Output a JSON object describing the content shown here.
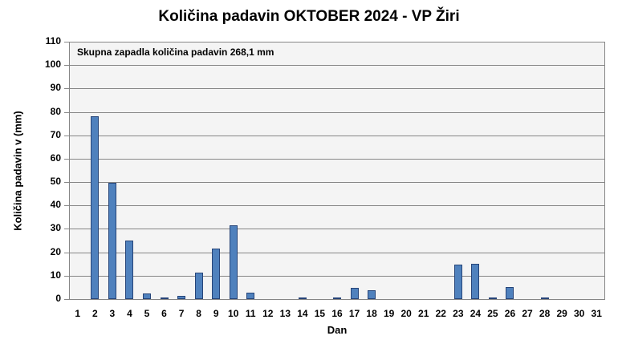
{
  "chart_data": {
    "type": "bar",
    "title": "Količina padavin OKTOBER 2024 - VP Žiri",
    "xlabel": "Dan",
    "ylabel": "Količina padavin v  (mm)",
    "ylim": [
      0,
      110
    ],
    "yticks": [
      0,
      10,
      20,
      30,
      40,
      50,
      60,
      70,
      80,
      90,
      100,
      110
    ],
    "grid": true,
    "legend": null,
    "annotation": "Skupna zapadla količina padavin 268,1 mm",
    "categories": [
      "1",
      "2",
      "3",
      "4",
      "5",
      "6",
      "7",
      "8",
      "9",
      "10",
      "11",
      "12",
      "13",
      "14",
      "15",
      "16",
      "17",
      "18",
      "19",
      "20",
      "21",
      "22",
      "23",
      "24",
      "25",
      "26",
      "27",
      "28",
      "29",
      "30",
      "31"
    ],
    "values": [
      0,
      78.1,
      49.7,
      25.0,
      2.3,
      0.3,
      1.3,
      11.3,
      21.6,
      31.4,
      2.7,
      0,
      0,
      0.3,
      0,
      0.3,
      4.7,
      3.7,
      0,
      0,
      0,
      0,
      14.7,
      15.0,
      0.3,
      5.1,
      0,
      0.3,
      0,
      0,
      0
    ],
    "bar_color": "#4f81bd",
    "bar_border": "#264478",
    "plot_bg": "#f4f4f4"
  }
}
